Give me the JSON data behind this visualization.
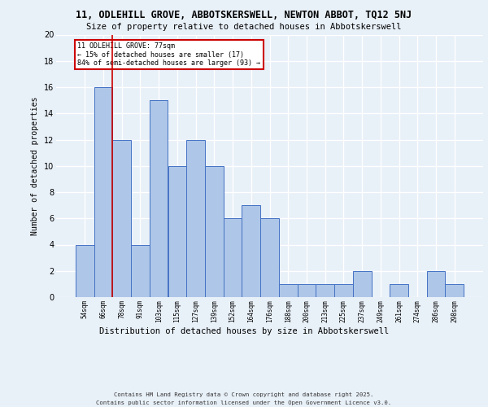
{
  "title_line1": "11, ODLEHILL GROVE, ABBOTSKERSWELL, NEWTON ABBOT, TQ12 5NJ",
  "title_line2": "Size of property relative to detached houses in Abbotskerswell",
  "xlabel": "Distribution of detached houses by size in Abbotskerswell",
  "ylabel": "Number of detached properties",
  "categories": [
    "54sqm",
    "66sqm",
    "78sqm",
    "91sqm",
    "103sqm",
    "115sqm",
    "127sqm",
    "139sqm",
    "152sqm",
    "164sqm",
    "176sqm",
    "188sqm",
    "200sqm",
    "213sqm",
    "225sqm",
    "237sqm",
    "249sqm",
    "261sqm",
    "274sqm",
    "286sqm",
    "298sqm"
  ],
  "values": [
    4,
    16,
    12,
    4,
    15,
    10,
    12,
    10,
    6,
    7,
    6,
    1,
    1,
    1,
    1,
    2,
    0,
    1,
    0,
    2,
    1
  ],
  "bar_color": "#aec6e8",
  "bar_edge_color": "#4472c4",
  "background_color": "#e8f0f8",
  "grid_color": "#ffffff",
  "ylim": [
    0,
    20
  ],
  "red_line_x": 1.5,
  "annotation_text": "11 ODLEHILL GROVE: 77sqm\n← 15% of detached houses are smaller (17)\n84% of semi-detached houses are larger (93) →",
  "annotation_box_color": "#ffffff",
  "annotation_box_edge": "#cc0000",
  "footnote_line1": "Contains HM Land Registry data © Crown copyright and database right 2025.",
  "footnote_line2": "Contains public sector information licensed under the Open Government Licence v3.0."
}
